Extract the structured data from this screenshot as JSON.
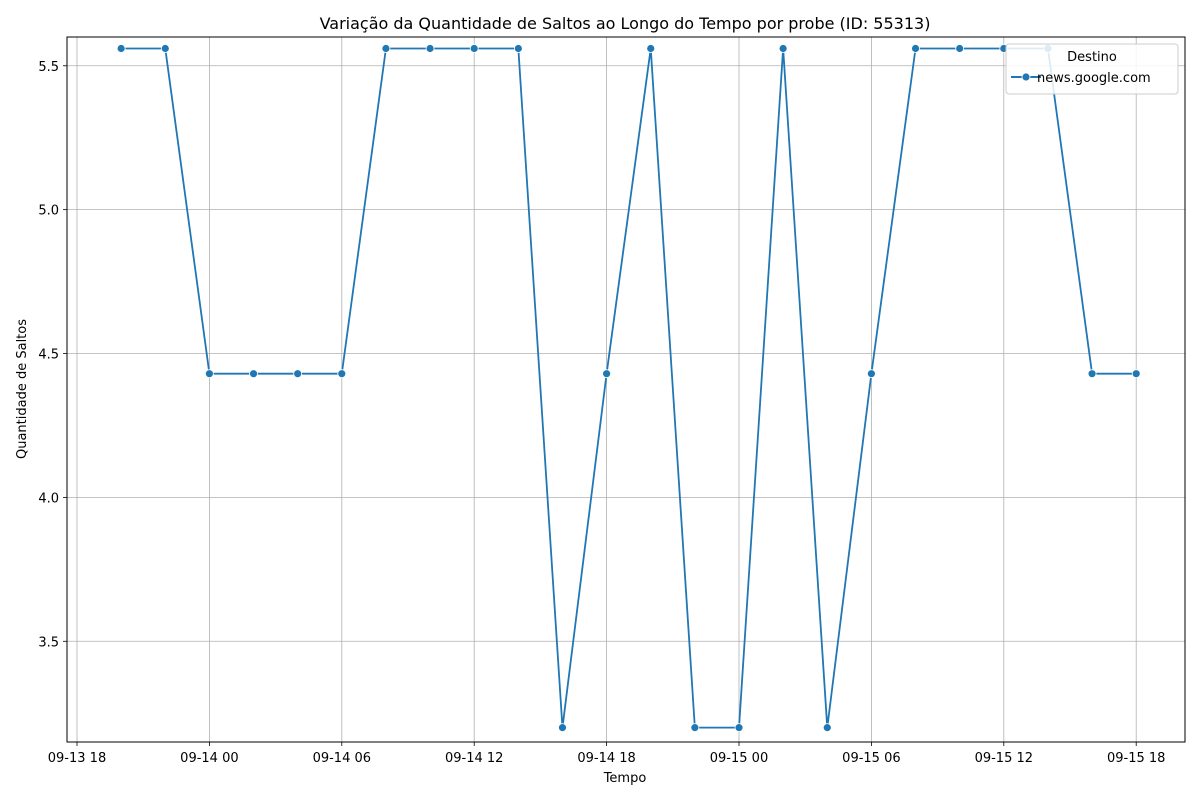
{
  "chart_data": {
    "type": "line",
    "title": "Variação da Quantidade de Saltos ao Longo do Tempo por probe (ID: 55313)",
    "xlabel": "Tempo",
    "ylabel": "Quantidade de Saltos",
    "x_ticks": [
      "09-13 18",
      "09-14 00",
      "09-14 06",
      "09-14 12",
      "09-14 18",
      "09-15 00",
      "09-15 06",
      "09-15 12",
      "09-15 18"
    ],
    "y_ticks": [
      "3.5",
      "4.0",
      "4.5",
      "5.0",
      "5.5"
    ],
    "ylim": [
      3.15,
      5.6
    ],
    "grid": true,
    "legend": {
      "title": "Destino",
      "position": "top-right"
    },
    "series": [
      {
        "name": "news.google.com",
        "color": "#1f77b4",
        "marker": "circle",
        "points": [
          {
            "x": "2024-09-13 20:00",
            "y": 5.56
          },
          {
            "x": "2024-09-13 22:00",
            "y": 5.56
          },
          {
            "x": "2024-09-14 00:00",
            "y": 4.43
          },
          {
            "x": "2024-09-14 02:00",
            "y": 4.43
          },
          {
            "x": "2024-09-14 04:00",
            "y": 4.43
          },
          {
            "x": "2024-09-14 06:00",
            "y": 4.43
          },
          {
            "x": "2024-09-14 08:00",
            "y": 5.56
          },
          {
            "x": "2024-09-14 10:00",
            "y": 5.56
          },
          {
            "x": "2024-09-14 12:00",
            "y": 5.56
          },
          {
            "x": "2024-09-14 14:00",
            "y": 5.56
          },
          {
            "x": "2024-09-14 16:00",
            "y": 3.2
          },
          {
            "x": "2024-09-14 18:00",
            "y": 4.43
          },
          {
            "x": "2024-09-14 20:00",
            "y": 5.56
          },
          {
            "x": "2024-09-14 22:00",
            "y": 3.2
          },
          {
            "x": "2024-09-15 00:00",
            "y": 3.2
          },
          {
            "x": "2024-09-15 02:00",
            "y": 5.56
          },
          {
            "x": "2024-09-15 04:00",
            "y": 3.2
          },
          {
            "x": "2024-09-15 06:00",
            "y": 4.43
          },
          {
            "x": "2024-09-15 08:00",
            "y": 5.56
          },
          {
            "x": "2024-09-15 10:00",
            "y": 5.56
          },
          {
            "x": "2024-09-15 12:00",
            "y": 5.56
          },
          {
            "x": "2024-09-15 14:00",
            "y": 5.56
          },
          {
            "x": "2024-09-15 16:00",
            "y": 4.43
          },
          {
            "x": "2024-09-15 18:00",
            "y": 4.43
          }
        ]
      }
    ]
  }
}
